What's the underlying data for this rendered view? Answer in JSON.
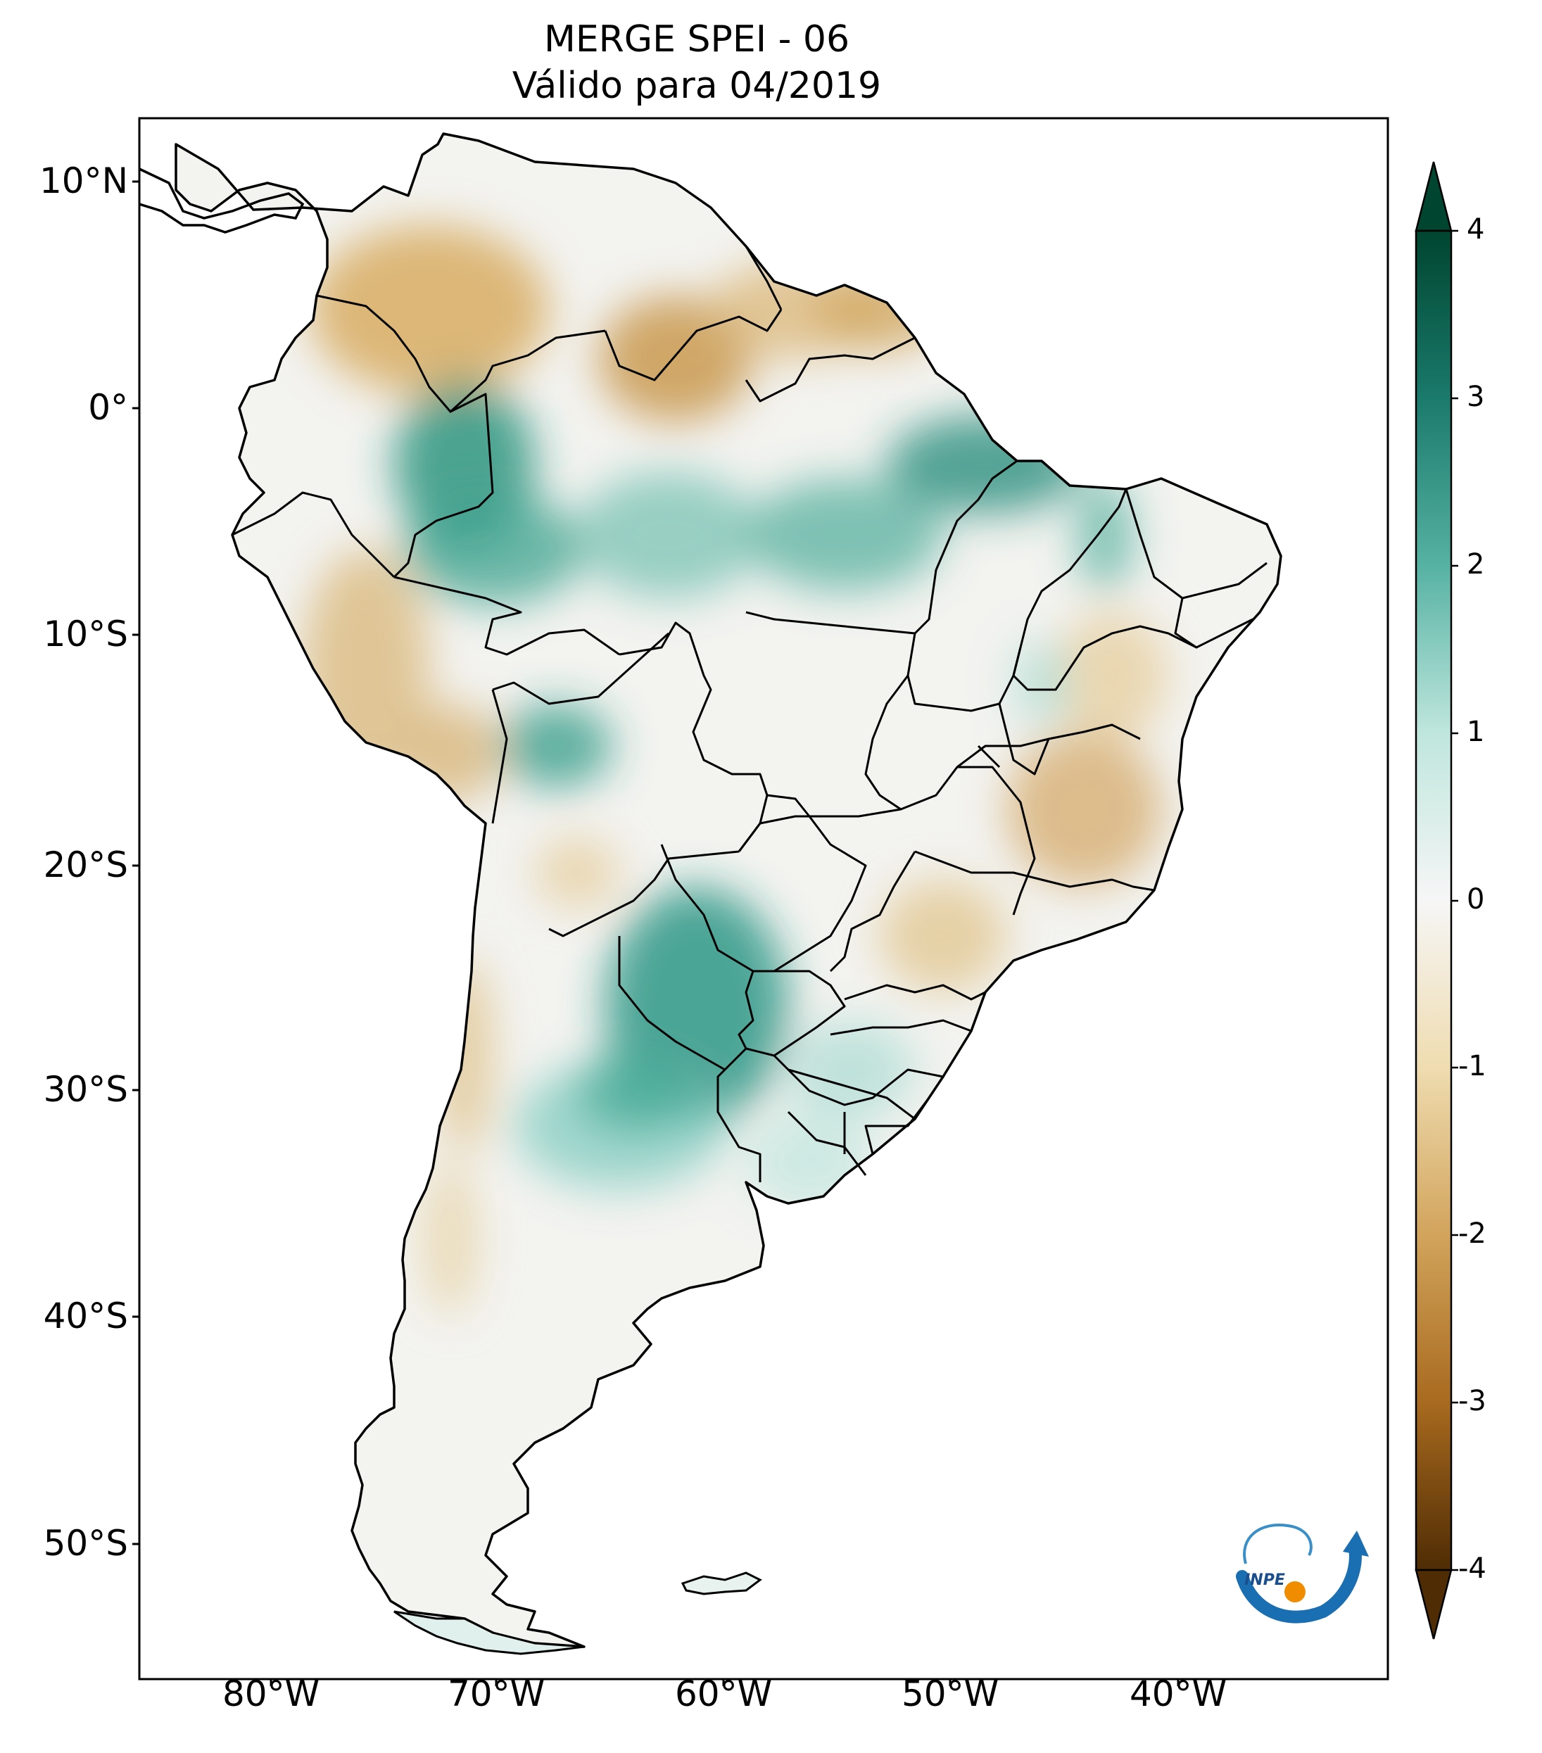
{
  "title": {
    "line1": "MERGE   SPEI - 06",
    "line2": "Válido para 04/2019"
  },
  "axes": {
    "lat_labels": [
      "10°N",
      "0°",
      "10°S",
      "20°S",
      "30°S",
      "40°S",
      "50°S"
    ],
    "lon_labels": [
      "80°W",
      "70°W",
      "60°W",
      "50°W",
      "40°W"
    ]
  },
  "colorbar": {
    "ticks": [
      "4",
      "3",
      "2",
      "1",
      "0",
      "-1",
      "-2",
      "-3",
      "-4"
    ],
    "colors": {
      "max": "#00452f",
      "high": "#1a7a6c",
      "mid_high": "#7ccbbd",
      "zero": "#f6f6f6",
      "mid_low": "#dfc07b",
      "low": "#a86a1f",
      "min": "#4f2c04"
    }
  },
  "logo": {
    "text": "INPE"
  }
}
